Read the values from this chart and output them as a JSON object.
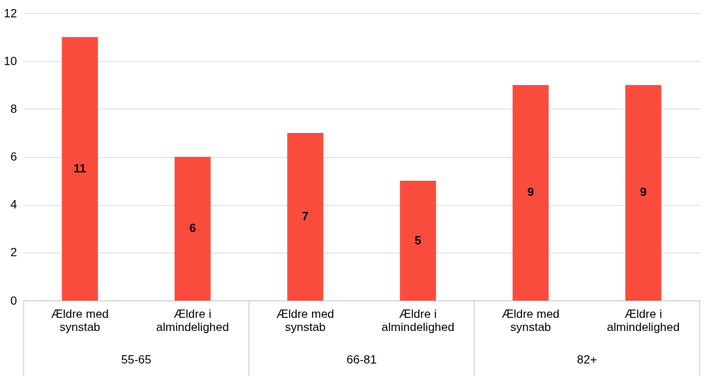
{
  "chart_data": {
    "type": "bar",
    "categories": [
      "Ældre med synstab",
      "Ældre i almindelighed",
      "Ældre med synstab",
      "Ældre i almindelighed",
      "Ældre med synstab",
      "Ældre i almindelighed"
    ],
    "values": [
      11,
      6,
      7,
      5,
      9,
      9
    ],
    "color": "#f94c3d",
    "ylim": [
      0,
      12
    ],
    "yticks": [
      0,
      2,
      4,
      6,
      8,
      10,
      12
    ],
    "grid": "y",
    "data_labels": true,
    "annotations": [
      "55-65",
      "66-81",
      "82+"
    ]
  }
}
